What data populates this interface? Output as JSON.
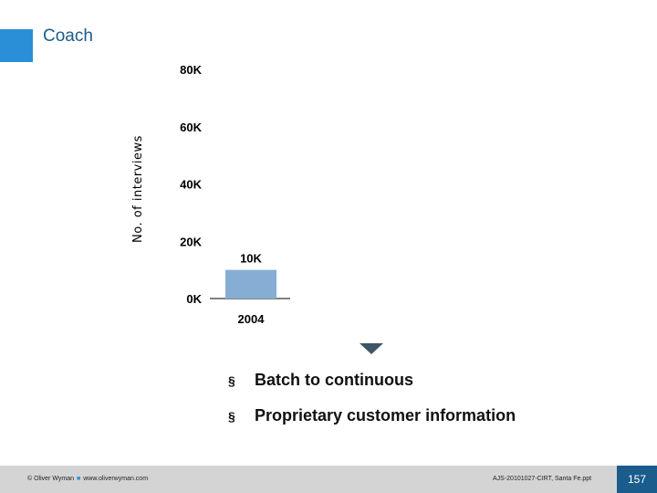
{
  "slide": {
    "title": "Coach",
    "bullets": [
      "Batch to continuous",
      "Proprietary customer information"
    ],
    "bullet_marker": "§"
  },
  "footer": {
    "copyright": "© Oliver Wyman",
    "website": "www.oliverwyman.com",
    "file": "AJS-20101027-CIRT, Santa Fe.ppt",
    "page_number": "157"
  },
  "colors": {
    "accent": "#2a8fd6",
    "bar": "#86aed4",
    "title": "#1a5c8c"
  },
  "chart_data": {
    "type": "bar",
    "categories": [
      "2004"
    ],
    "values": [
      10
    ],
    "value_labels": [
      "10K"
    ],
    "ylabel": "No. of interviews",
    "ylim": [
      0,
      80
    ],
    "y_ticks": [
      0,
      20,
      40,
      60,
      80
    ],
    "y_tick_labels": [
      "0K",
      "20K",
      "40K",
      "60K",
      "80K"
    ],
    "grid": false,
    "legend": "none"
  }
}
